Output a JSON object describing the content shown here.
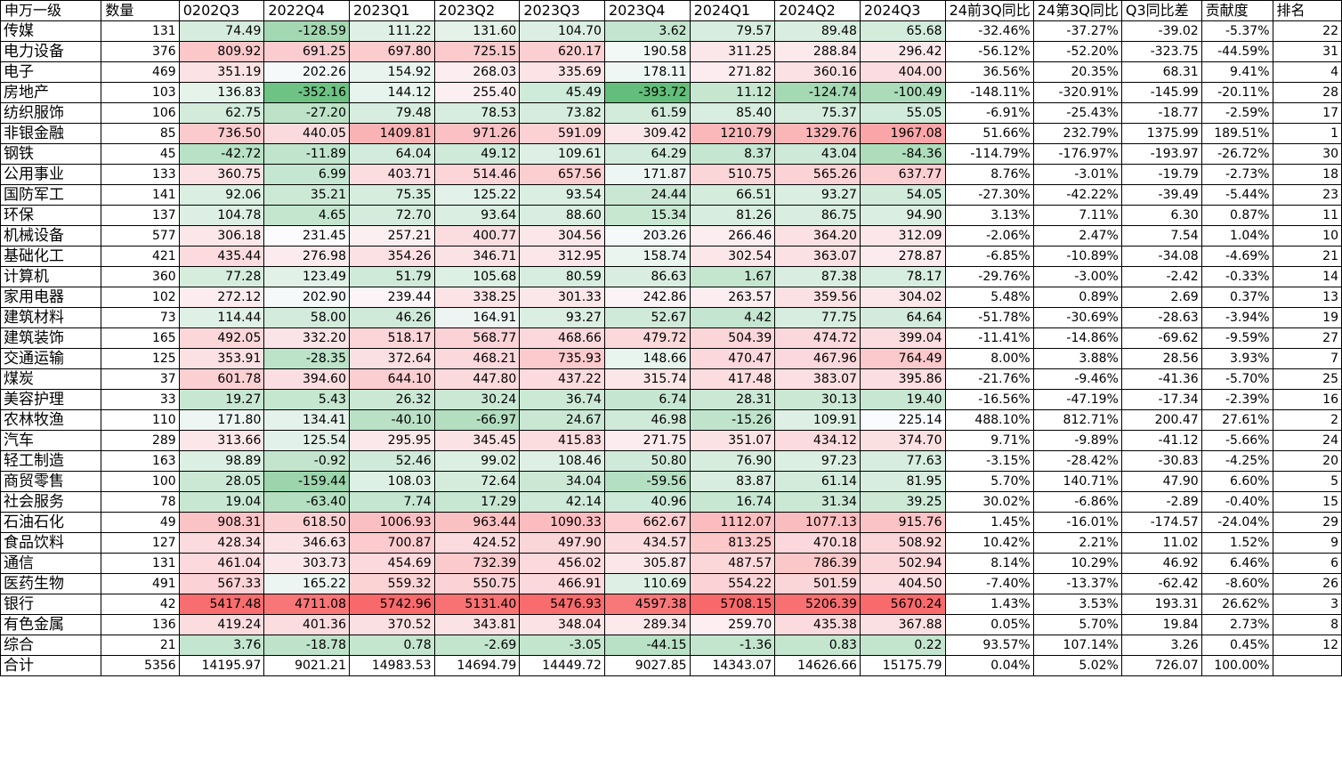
{
  "headers": [
    "申万一级",
    "数量",
    "0202Q3",
    "2022Q4",
    "2023Q1",
    "2023Q2",
    "2023Q3",
    "2023Q4",
    "2024Q1",
    "2024Q2",
    "2024Q3",
    "24前3Q同比",
    "24第3Q同比",
    "Q3同比差",
    "贡献度",
    "排名"
  ],
  "rows": [
    {
      "name": "传媒",
      "count": "131",
      "q": [
        "74.49",
        "-128.59",
        "111.22",
        "131.60",
        "104.70",
        "3.62",
        "79.57",
        "89.48",
        "65.68"
      ],
      "yoy3q": "-32.46%",
      "yoyq3": "-37.27%",
      "diff": "-39.02",
      "contrib": "-5.37%",
      "rank": "22"
    },
    {
      "name": "电力设备",
      "count": "376",
      "q": [
        "809.92",
        "691.25",
        "697.80",
        "725.15",
        "620.17",
        "190.58",
        "311.25",
        "288.84",
        "296.42"
      ],
      "yoy3q": "-56.12%",
      "yoyq3": "-52.20%",
      "diff": "-323.75",
      "contrib": "-44.59%",
      "rank": "31"
    },
    {
      "name": "电子",
      "count": "469",
      "q": [
        "351.19",
        "202.26",
        "154.92",
        "268.03",
        "335.69",
        "178.11",
        "271.82",
        "360.16",
        "404.00"
      ],
      "yoy3q": "36.56%",
      "yoyq3": "20.35%",
      "diff": "68.31",
      "contrib": "9.41%",
      "rank": "4"
    },
    {
      "name": "房地产",
      "count": "103",
      "q": [
        "136.83",
        "-352.16",
        "144.12",
        "255.40",
        "45.49",
        "-393.72",
        "11.12",
        "-124.74",
        "-100.49"
      ],
      "yoy3q": "-148.11%",
      "yoyq3": "-320.91%",
      "diff": "-145.99",
      "contrib": "-20.11%",
      "rank": "28"
    },
    {
      "name": "纺织服饰",
      "count": "106",
      "q": [
        "62.75",
        "-27.20",
        "79.48",
        "78.53",
        "73.82",
        "61.59",
        "85.40",
        "75.37",
        "55.05"
      ],
      "yoy3q": "-6.91%",
      "yoyq3": "-25.43%",
      "diff": "-18.77",
      "contrib": "-2.59%",
      "rank": "17"
    },
    {
      "name": "非银金融",
      "count": "85",
      "q": [
        "736.50",
        "440.05",
        "1409.81",
        "971.26",
        "591.09",
        "309.42",
        "1210.79",
        "1329.76",
        "1967.08"
      ],
      "yoy3q": "51.66%",
      "yoyq3": "232.79%",
      "diff": "1375.99",
      "contrib": "189.51%",
      "rank": "1"
    },
    {
      "name": "钢铁",
      "count": "45",
      "q": [
        "-42.72",
        "-11.89",
        "64.04",
        "49.12",
        "109.61",
        "64.29",
        "8.37",
        "43.04",
        "-84.36"
      ],
      "yoy3q": "-114.79%",
      "yoyq3": "-176.97%",
      "diff": "-193.97",
      "contrib": "-26.72%",
      "rank": "30"
    },
    {
      "name": "公用事业",
      "count": "133",
      "q": [
        "360.75",
        "6.99",
        "403.71",
        "514.46",
        "657.56",
        "171.87",
        "510.75",
        "565.26",
        "637.77"
      ],
      "yoy3q": "8.76%",
      "yoyq3": "-3.01%",
      "diff": "-19.79",
      "contrib": "-2.73%",
      "rank": "18"
    },
    {
      "name": "国防军工",
      "count": "141",
      "q": [
        "92.06",
        "35.21",
        "75.35",
        "125.22",
        "93.54",
        "24.44",
        "66.51",
        "93.27",
        "54.05"
      ],
      "yoy3q": "-27.30%",
      "yoyq3": "-42.22%",
      "diff": "-39.49",
      "contrib": "-5.44%",
      "rank": "23"
    },
    {
      "name": "环保",
      "count": "137",
      "q": [
        "104.78",
        "4.65",
        "72.70",
        "93.64",
        "88.60",
        "15.34",
        "81.26",
        "86.75",
        "94.90"
      ],
      "yoy3q": "3.13%",
      "yoyq3": "7.11%",
      "diff": "6.30",
      "contrib": "0.87%",
      "rank": "11"
    },
    {
      "name": "机械设备",
      "count": "577",
      "q": [
        "306.18",
        "231.45",
        "257.21",
        "400.77",
        "304.56",
        "203.26",
        "266.46",
        "364.20",
        "312.09"
      ],
      "yoy3q": "-2.06%",
      "yoyq3": "2.47%",
      "diff": "7.54",
      "contrib": "1.04%",
      "rank": "10"
    },
    {
      "name": "基础化工",
      "count": "421",
      "q": [
        "435.44",
        "276.98",
        "354.26",
        "346.71",
        "312.95",
        "158.74",
        "302.54",
        "363.07",
        "278.87"
      ],
      "yoy3q": "-6.85%",
      "yoyq3": "-10.89%",
      "diff": "-34.08",
      "contrib": "-4.69%",
      "rank": "21"
    },
    {
      "name": "计算机",
      "count": "360",
      "q": [
        "77.28",
        "123.49",
        "51.79",
        "105.68",
        "80.59",
        "86.63",
        "1.67",
        "87.38",
        "78.17"
      ],
      "yoy3q": "-29.76%",
      "yoyq3": "-3.00%",
      "diff": "-2.42",
      "contrib": "-0.33%",
      "rank": "14"
    },
    {
      "name": "家用电器",
      "count": "102",
      "q": [
        "272.12",
        "202.90",
        "239.44",
        "338.25",
        "301.33",
        "242.86",
        "263.57",
        "359.56",
        "304.02"
      ],
      "yoy3q": "5.48%",
      "yoyq3": "0.89%",
      "diff": "2.69",
      "contrib": "0.37%",
      "rank": "13"
    },
    {
      "name": "建筑材料",
      "count": "73",
      "q": [
        "114.44",
        "58.00",
        "46.26",
        "164.91",
        "93.27",
        "52.67",
        "4.42",
        "77.75",
        "64.64"
      ],
      "yoy3q": "-51.78%",
      "yoyq3": "-30.69%",
      "diff": "-28.63",
      "contrib": "-3.94%",
      "rank": "19"
    },
    {
      "name": "建筑装饰",
      "count": "165",
      "q": [
        "492.05",
        "332.20",
        "518.17",
        "568.77",
        "468.66",
        "479.72",
        "504.39",
        "474.72",
        "399.04"
      ],
      "yoy3q": "-11.41%",
      "yoyq3": "-14.86%",
      "diff": "-69.62",
      "contrib": "-9.59%",
      "rank": "27"
    },
    {
      "name": "交通运输",
      "count": "125",
      "q": [
        "353.91",
        "-28.35",
        "372.64",
        "468.21",
        "735.93",
        "148.66",
        "470.47",
        "467.96",
        "764.49"
      ],
      "yoy3q": "8.00%",
      "yoyq3": "3.88%",
      "diff": "28.56",
      "contrib": "3.93%",
      "rank": "7"
    },
    {
      "name": "煤炭",
      "count": "37",
      "q": [
        "601.78",
        "394.60",
        "644.10",
        "447.80",
        "437.22",
        "315.74",
        "417.48",
        "383.07",
        "395.86"
      ],
      "yoy3q": "-21.76%",
      "yoyq3": "-9.46%",
      "diff": "-41.36",
      "contrib": "-5.70%",
      "rank": "25"
    },
    {
      "name": "美容护理",
      "count": "33",
      "q": [
        "19.27",
        "5.43",
        "26.32",
        "30.24",
        "36.74",
        "6.74",
        "28.31",
        "30.13",
        "19.40"
      ],
      "yoy3q": "-16.56%",
      "yoyq3": "-47.19%",
      "diff": "-17.34",
      "contrib": "-2.39%",
      "rank": "16"
    },
    {
      "name": "农林牧渔",
      "count": "110",
      "q": [
        "171.80",
        "134.41",
        "-40.10",
        "-66.97",
        "24.67",
        "46.98",
        "-15.26",
        "109.91",
        "225.14"
      ],
      "yoy3q": "488.10%",
      "yoyq3": "812.71%",
      "diff": "200.47",
      "contrib": "27.61%",
      "rank": "2"
    },
    {
      "name": "汽车",
      "count": "289",
      "q": [
        "313.66",
        "125.54",
        "295.95",
        "345.45",
        "415.83",
        "271.75",
        "351.07",
        "434.12",
        "374.70"
      ],
      "yoy3q": "9.71%",
      "yoyq3": "-9.89%",
      "diff": "-41.12",
      "contrib": "-5.66%",
      "rank": "24"
    },
    {
      "name": "轻工制造",
      "count": "163",
      "q": [
        "98.89",
        "-0.92",
        "52.46",
        "99.02",
        "108.46",
        "50.80",
        "76.90",
        "97.23",
        "77.63"
      ],
      "yoy3q": "-3.15%",
      "yoyq3": "-28.42%",
      "diff": "-30.83",
      "contrib": "-4.25%",
      "rank": "20"
    },
    {
      "name": "商贸零售",
      "count": "100",
      "q": [
        "28.05",
        "-159.44",
        "108.03",
        "72.64",
        "34.04",
        "-59.56",
        "83.87",
        "61.14",
        "81.95"
      ],
      "yoy3q": "5.70%",
      "yoyq3": "140.71%",
      "diff": "47.90",
      "contrib": "6.60%",
      "rank": "5"
    },
    {
      "name": "社会服务",
      "count": "78",
      "q": [
        "19.04",
        "-63.40",
        "7.74",
        "17.29",
        "42.14",
        "40.96",
        "16.74",
        "31.34",
        "39.25"
      ],
      "yoy3q": "30.02%",
      "yoyq3": "-6.86%",
      "diff": "-2.89",
      "contrib": "-0.40%",
      "rank": "15"
    },
    {
      "name": "石油石化",
      "count": "49",
      "q": [
        "908.31",
        "618.50",
        "1006.93",
        "963.44",
        "1090.33",
        "662.67",
        "1112.07",
        "1077.13",
        "915.76"
      ],
      "yoy3q": "1.45%",
      "yoyq3": "-16.01%",
      "diff": "-174.57",
      "contrib": "-24.04%",
      "rank": "29"
    },
    {
      "name": "食品饮料",
      "count": "127",
      "q": [
        "428.34",
        "346.63",
        "700.87",
        "424.52",
        "497.90",
        "434.57",
        "813.25",
        "470.18",
        "508.92"
      ],
      "yoy3q": "10.42%",
      "yoyq3": "2.21%",
      "diff": "11.02",
      "contrib": "1.52%",
      "rank": "9"
    },
    {
      "name": "通信",
      "count": "131",
      "q": [
        "461.04",
        "303.73",
        "454.69",
        "732.39",
        "456.02",
        "305.87",
        "487.57",
        "786.39",
        "502.94"
      ],
      "yoy3q": "8.14%",
      "yoyq3": "10.29%",
      "diff": "46.92",
      "contrib": "6.46%",
      "rank": "6"
    },
    {
      "name": "医药生物",
      "count": "491",
      "q": [
        "567.33",
        "165.22",
        "559.32",
        "550.75",
        "466.91",
        "110.69",
        "554.22",
        "501.59",
        "404.50"
      ],
      "yoy3q": "-7.40%",
      "yoyq3": "-13.37%",
      "diff": "-62.42",
      "contrib": "-8.60%",
      "rank": "26"
    },
    {
      "name": "银行",
      "count": "42",
      "q": [
        "5417.48",
        "4711.08",
        "5742.96",
        "5131.40",
        "5476.93",
        "4597.38",
        "5708.15",
        "5206.39",
        "5670.24"
      ],
      "yoy3q": "1.43%",
      "yoyq3": "3.53%",
      "diff": "193.31",
      "contrib": "26.62%",
      "rank": "3"
    },
    {
      "name": "有色金属",
      "count": "136",
      "q": [
        "419.24",
        "401.36",
        "370.52",
        "343.81",
        "348.04",
        "289.34",
        "259.70",
        "435.38",
        "367.88"
      ],
      "yoy3q": "0.05%",
      "yoyq3": "5.70%",
      "diff": "19.84",
      "contrib": "2.73%",
      "rank": "8"
    },
    {
      "name": "综合",
      "count": "21",
      "q": [
        "3.76",
        "-18.78",
        "0.78",
        "-2.69",
        "-3.05",
        "-44.15",
        "-1.36",
        "0.83",
        "0.22"
      ],
      "yoy3q": "93.57%",
      "yoyq3": "107.14%",
      "diff": "3.26",
      "contrib": "0.45%",
      "rank": "12"
    }
  ],
  "total": {
    "name": "合计",
    "count": "5356",
    "q": [
      "14195.97",
      "9021.21",
      "14983.53",
      "14694.79",
      "14449.72",
      "9027.85",
      "14343.07",
      "14626.66",
      "15175.79"
    ],
    "yoy3q": "0.04%",
    "yoyq3": "5.02%",
    "diff": "726.07",
    "contrib": "100.00%",
    "rank": ""
  },
  "colors": {
    "low": "#63be7b",
    "mid": "#fcfcff",
    "high": "#f8696b",
    "border": "#000000"
  }
}
